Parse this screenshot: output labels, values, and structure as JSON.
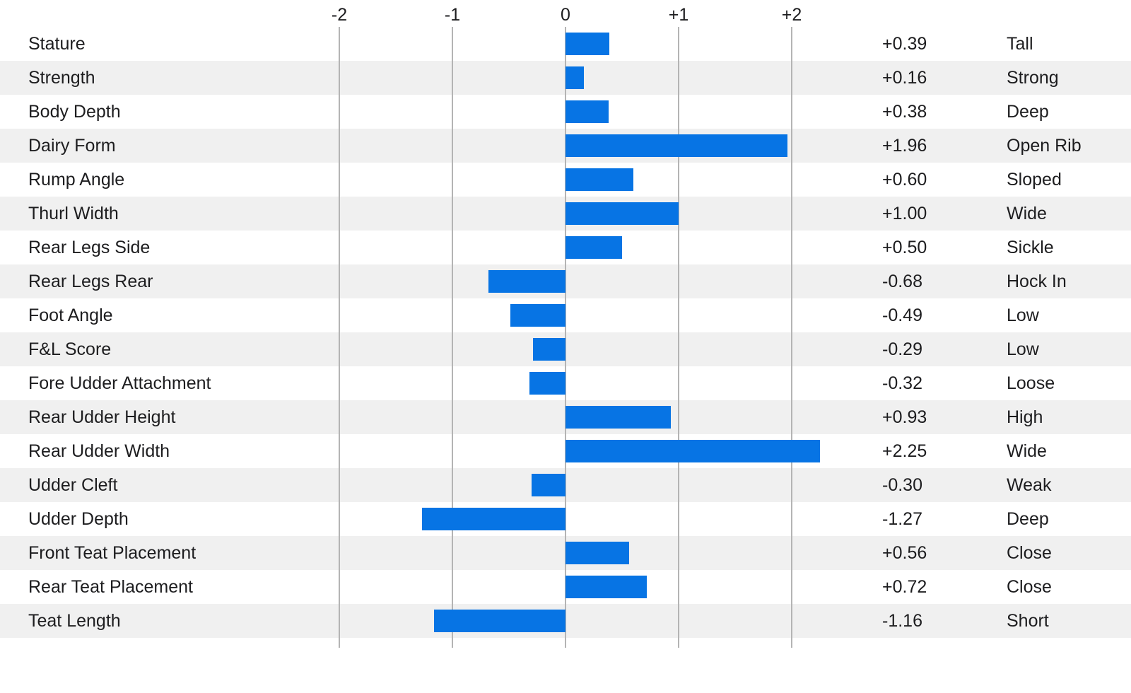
{
  "chart_data": {
    "type": "bar",
    "orientation": "horizontal",
    "title": "",
    "xlabel": "",
    "ylabel": "",
    "xlim": [
      -2,
      2
    ],
    "grid": "vertical-lines",
    "legend": "none",
    "axis": {
      "ticks": [
        {
          "label": "-2",
          "value": -2
        },
        {
          "label": "-1",
          "value": -1
        },
        {
          "label": "0",
          "value": 0
        },
        {
          "label": "+1",
          "value": 1
        },
        {
          "label": "+2",
          "value": 2
        }
      ]
    },
    "rows": [
      {
        "trait": "Stature",
        "value": 0.39,
        "value_label": "+0.39",
        "descriptor": "Tall"
      },
      {
        "trait": "Strength",
        "value": 0.16,
        "value_label": "+0.16",
        "descriptor": "Strong"
      },
      {
        "trait": "Body Depth",
        "value": 0.38,
        "value_label": "+0.38",
        "descriptor": "Deep"
      },
      {
        "trait": "Dairy Form",
        "value": 1.96,
        "value_label": "+1.96",
        "descriptor": "Open Rib"
      },
      {
        "trait": "Rump Angle",
        "value": 0.6,
        "value_label": "+0.60",
        "descriptor": "Sloped"
      },
      {
        "trait": "Thurl Width",
        "value": 1.0,
        "value_label": "+1.00",
        "descriptor": "Wide"
      },
      {
        "trait": "Rear Legs Side",
        "value": 0.5,
        "value_label": "+0.50",
        "descriptor": "Sickle"
      },
      {
        "trait": "Rear Legs Rear",
        "value": -0.68,
        "value_label": "-0.68",
        "descriptor": "Hock In"
      },
      {
        "trait": "Foot Angle",
        "value": -0.49,
        "value_label": "-0.49",
        "descriptor": "Low"
      },
      {
        "trait": "F&L Score",
        "value": -0.29,
        "value_label": "-0.29",
        "descriptor": "Low"
      },
      {
        "trait": "Fore Udder Attachment",
        "value": -0.32,
        "value_label": "-0.32",
        "descriptor": "Loose"
      },
      {
        "trait": "Rear Udder Height",
        "value": 0.93,
        "value_label": "+0.93",
        "descriptor": "High"
      },
      {
        "trait": "Rear Udder Width",
        "value": 2.25,
        "value_label": "+2.25",
        "descriptor": "Wide"
      },
      {
        "trait": "Udder Cleft",
        "value": -0.3,
        "value_label": "-0.30",
        "descriptor": "Weak"
      },
      {
        "trait": "Udder Depth",
        "value": -1.27,
        "value_label": "-1.27",
        "descriptor": "Deep"
      },
      {
        "trait": "Front Teat Placement",
        "value": 0.56,
        "value_label": "+0.56",
        "descriptor": "Close"
      },
      {
        "trait": "Rear Teat Placement",
        "value": 0.72,
        "value_label": "+0.72",
        "descriptor": "Close"
      },
      {
        "trait": "Teat Length",
        "value": -1.16,
        "value_label": "-1.16",
        "descriptor": "Short"
      }
    ],
    "colors": {
      "bar": "#0774e4",
      "stripe": "#f0f0f0",
      "gridline": "#b4b4b4",
      "text": "#1d1d1f",
      "background": "#ffffff"
    }
  }
}
